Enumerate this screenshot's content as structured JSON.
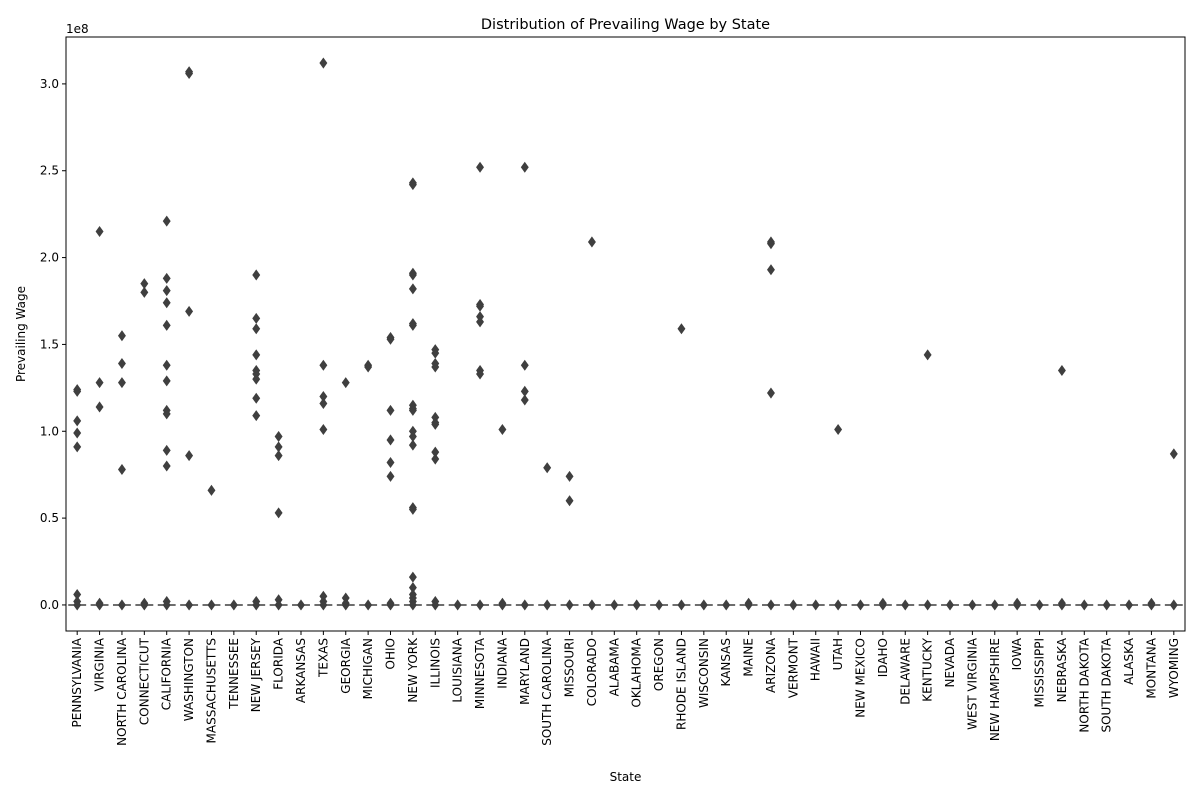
{
  "chart_data": {
    "type": "box",
    "title": "Distribution of Prevailing Wage by State",
    "xlabel": "State",
    "ylabel": "Prevailing Wage",
    "y_offset_text": "1e8",
    "ylim": [
      -0.15,
      3.27
    ],
    "y_ticks": [
      0.0,
      0.5,
      1.0,
      1.5,
      2.0,
      2.5,
      3.0
    ],
    "y_tick_labels": [
      "0.0",
      "0.5",
      "1.0",
      "1.5",
      "2.0",
      "2.5",
      "3.0"
    ],
    "y_unit_note": "values in units of 1e8",
    "grid": false,
    "marker_color": "#3f3f3f",
    "categories": [
      "PENNSYLVANIA",
      "VIRGINIA",
      "NORTH CAROLINA",
      "CONNECTICUT",
      "CALIFORNIA",
      "WASHINGTON",
      "MASSACHUSETTS",
      "TENNESSEE",
      "NEW JERSEY",
      "FLORIDA",
      "ARKANSAS",
      "TEXAS",
      "GEORGIA",
      "MICHIGAN",
      "OHIO",
      "NEW YORK",
      "ILLINOIS",
      "LOUISIANA",
      "MINNESOTA",
      "INDIANA",
      "MARYLAND",
      "SOUTH CAROLINA",
      "MISSOURI",
      "COLORADO",
      "ALABAMA",
      "OKLAHOMA",
      "OREGON",
      "RHODE ISLAND",
      "WISCONSIN",
      "KANSAS",
      "MAINE",
      "ARIZONA",
      "VERMONT",
      "HAWAII",
      "UTAH",
      "NEW MEXICO",
      "IDAHO",
      "DELAWARE",
      "KENTUCKY",
      "NEVADA",
      "WEST VIRGINIA",
      "NEW HAMPSHIRE",
      "IOWA",
      "MISSISSIPPI",
      "NEBRASKA",
      "NORTH DAKOTA",
      "SOUTH DAKOTA",
      "ALASKA",
      "MONTANA",
      "WYOMING"
    ],
    "outliers": [
      [
        1.24,
        1.23,
        1.06,
        0.99,
        0.91,
        0.06,
        0.02,
        0.0
      ],
      [
        2.15,
        1.28,
        1.14,
        0.01,
        0.0
      ],
      [
        1.55,
        1.39,
        1.28,
        0.78,
        0.0
      ],
      [
        1.85,
        1.8,
        0.01,
        0.0
      ],
      [
        2.21,
        1.88,
        1.81,
        1.74,
        1.61,
        1.38,
        1.29,
        1.12,
        1.1,
        0.89,
        0.8,
        0.02,
        0.0
      ],
      [
        3.07,
        3.06,
        1.69,
        0.86,
        0.0
      ],
      [
        0.66,
        0.0
      ],
      [
        0.0
      ],
      [
        1.9,
        1.65,
        1.59,
        1.44,
        1.35,
        1.33,
        1.3,
        1.19,
        1.09,
        0.02,
        0.0
      ],
      [
        0.97,
        0.91,
        0.86,
        0.53,
        0.03,
        0.0
      ],
      [
        0.0
      ],
      [
        3.12,
        1.38,
        1.2,
        1.16,
        1.01,
        0.05,
        0.02,
        0.0
      ],
      [
        1.28,
        0.04,
        0.01,
        0.0
      ],
      [
        1.38,
        1.37,
        0.0
      ],
      [
        1.54,
        1.53,
        1.12,
        0.95,
        0.82,
        0.74,
        0.01,
        0.0
      ],
      [
        2.43,
        2.42,
        1.91,
        1.9,
        1.82,
        1.62,
        1.61,
        1.15,
        1.13,
        1.12,
        1.0,
        0.97,
        0.92,
        0.56,
        0.55,
        0.16,
        0.1,
        0.06,
        0.04,
        0.02,
        0.0
      ],
      [
        1.47,
        1.45,
        1.39,
        1.37,
        1.08,
        1.05,
        1.04,
        0.88,
        0.84,
        0.02,
        0.0
      ],
      [
        0.0
      ],
      [
        2.52,
        1.73,
        1.72,
        1.66,
        1.63,
        1.35,
        1.33,
        0.0
      ],
      [
        1.01,
        0.01,
        0.0
      ],
      [
        2.52,
        1.38,
        1.23,
        1.18,
        0.0
      ],
      [
        0.79,
        0.0
      ],
      [
        0.74,
        0.6,
        0.0
      ],
      [
        2.09,
        0.0
      ],
      [
        0.0
      ],
      [
        0.0
      ],
      [
        0.0
      ],
      [
        1.59,
        0.0
      ],
      [
        0.0
      ],
      [
        0.0
      ],
      [
        0.01,
        0.0
      ],
      [
        2.09,
        2.08,
        1.93,
        1.22,
        0.0
      ],
      [
        0.0
      ],
      [
        0.0
      ],
      [
        1.01,
        0.0
      ],
      [
        0.0
      ],
      [
        0.01,
        0.0
      ],
      [
        0.0
      ],
      [
        1.44,
        0.0
      ],
      [
        0.0
      ],
      [
        0.0
      ],
      [
        0.0
      ],
      [
        0.01,
        0.0
      ],
      [
        0.0
      ],
      [
        1.35,
        0.01,
        0.0
      ],
      [
        0.0
      ],
      [
        0.0
      ],
      [
        0.0
      ],
      [
        0.01,
        0.0
      ],
      [
        0.87,
        0.0
      ]
    ]
  }
}
